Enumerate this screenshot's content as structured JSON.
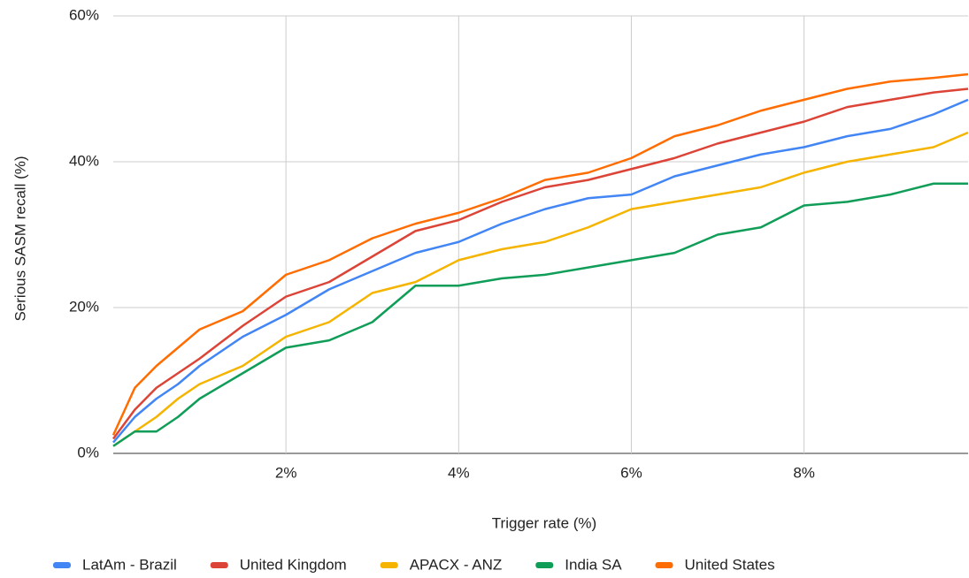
{
  "chart_data": {
    "type": "line",
    "x_label": "Trigger rate (%)",
    "y_label": "Serious SASM recall (%)",
    "x": [
      0,
      0.25,
      0.5,
      0.75,
      1,
      1.5,
      2,
      2.5,
      3,
      3.5,
      4,
      4.5,
      5,
      5.5,
      6,
      6.5,
      7,
      7.5,
      8,
      8.5,
      9,
      9.5,
      9.9
    ],
    "series": [
      {
        "name": "LatAm - Brazil",
        "color": "#4285f4",
        "values": [
          1.5,
          5,
          7.5,
          9.5,
          12,
          16,
          19,
          22.5,
          25,
          27.5,
          29,
          31.5,
          33.5,
          35,
          35.5,
          38,
          39.5,
          41,
          42,
          43.5,
          44.5,
          46.5,
          48.5
        ]
      },
      {
        "name": "United Kingdom",
        "color": "#db4437",
        "values": [
          2,
          6,
          9,
          11,
          13,
          17.5,
          21.5,
          23.5,
          27,
          30.5,
          32,
          34.5,
          36.5,
          37.5,
          39,
          40.5,
          42.5,
          44,
          45.5,
          47.5,
          48.5,
          49.5,
          50
        ]
      },
      {
        "name": "APACX - ANZ",
        "color": "#f4b400",
        "values": [
          1,
          3,
          5,
          7.5,
          9.5,
          12,
          16,
          18,
          22,
          23.5,
          26.5,
          28,
          29,
          31,
          33.5,
          34.5,
          35.5,
          36.5,
          38.5,
          40,
          41,
          42,
          44
        ]
      },
      {
        "name": "India SA",
        "color": "#0f9d58",
        "values": [
          1,
          3,
          3,
          5,
          7.5,
          11,
          14.5,
          15.5,
          18,
          23,
          23,
          24,
          24.5,
          25.5,
          26.5,
          27.5,
          30,
          31,
          34,
          34.5,
          35.5,
          37,
          37
        ]
      },
      {
        "name": "United States",
        "color": "#ff6d01",
        "values": [
          2.5,
          9,
          12,
          14.5,
          17,
          19.5,
          24.5,
          26.5,
          29.5,
          31.5,
          33,
          35,
          37.5,
          38.5,
          40.5,
          43.5,
          45,
          47,
          48.5,
          50,
          51,
          51.5,
          52
        ]
      }
    ],
    "xlim": [
      0,
      9.9
    ],
    "ylim": [
      0,
      60
    ],
    "xticks": [
      {
        "value": 2,
        "label": "2%"
      },
      {
        "value": 4,
        "label": "4%"
      },
      {
        "value": 6,
        "label": "6%"
      },
      {
        "value": 8,
        "label": "8%"
      }
    ],
    "yticks": [
      {
        "value": 0,
        "label": "0%"
      },
      {
        "value": 20,
        "label": "20%"
      },
      {
        "value": 40,
        "label": "40%"
      },
      {
        "value": 60,
        "label": "60%"
      }
    ],
    "grid": true,
    "legend": "bottom"
  }
}
